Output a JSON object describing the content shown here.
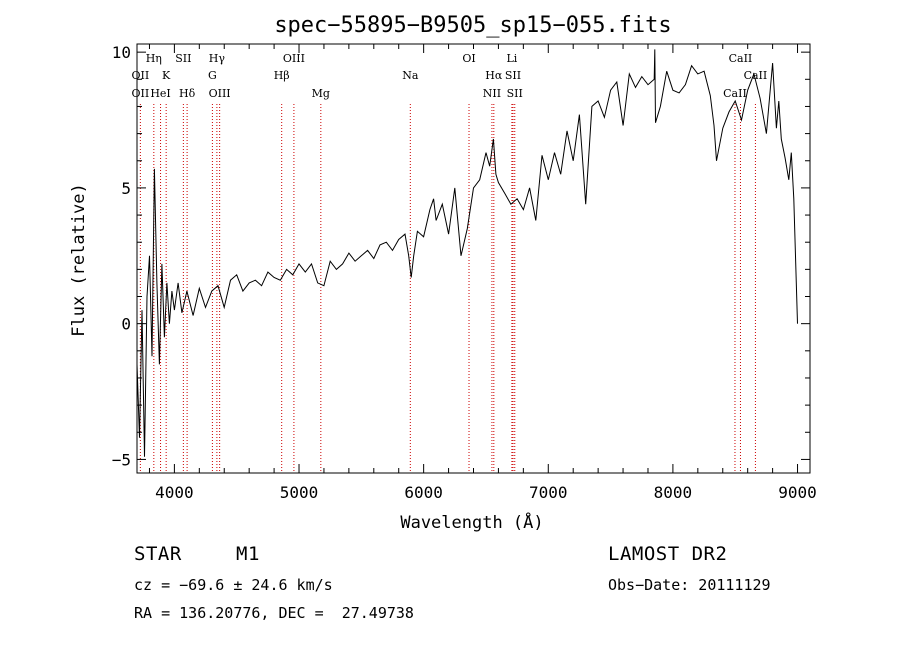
{
  "chart_data": {
    "type": "line",
    "title": "spec−55895−B9505_sp15−055.fits",
    "xlabel": "Wavelength (Å)",
    "ylabel": "Flux (relative)",
    "xlim": [
      3700,
      9100
    ],
    "ylim": [
      -5.5,
      10.3
    ],
    "x_ticks": [
      4000,
      5000,
      6000,
      7000,
      8000,
      9000
    ],
    "y_ticks": [
      -5,
      0,
      5,
      10
    ],
    "grid": false,
    "series": [
      {
        "x": [
          3700,
          3720,
          3740,
          3760,
          3780,
          3800,
          3820,
          3840,
          3860,
          3880,
          3900,
          3920,
          3940,
          3960,
          3980,
          4000,
          4030,
          4060,
          4100,
          4150,
          4200,
          4250,
          4300,
          4350,
          4400,
          4450,
          4500,
          4550,
          4600,
          4650,
          4700,
          4750,
          4800,
          4850,
          4900,
          4950,
          5000,
          5050,
          5100,
          5150,
          5200,
          5250,
          5300,
          5350,
          5400,
          5450,
          5500,
          5550,
          5600,
          5650,
          5700,
          5750,
          5800,
          5850,
          5880,
          5900,
          5920,
          5950,
          6000,
          6050,
          6080,
          6100,
          6150,
          6200,
          6250,
          6300,
          6350,
          6400,
          6450,
          6500,
          6530,
          6560,
          6580,
          6600,
          6650,
          6700,
          6750,
          6800,
          6850,
          6900,
          6950,
          7000,
          7050,
          7100,
          7150,
          7200,
          7250,
          7300,
          7350,
          7400,
          7450,
          7500,
          7550,
          7600,
          7650,
          7700,
          7750,
          7800,
          7850,
          7855,
          7860,
          7900,
          7950,
          8000,
          8050,
          8100,
          8150,
          8200,
          8250,
          8300,
          8330,
          8350,
          8400,
          8450,
          8500,
          8550,
          8600,
          8650,
          8700,
          8750,
          8800,
          8830,
          8850,
          8870,
          8900,
          8930,
          8950,
          8970,
          9000
        ],
        "y": [
          -1.5,
          -4.2,
          0.5,
          -4.9,
          1.0,
          2.5,
          -1.2,
          5.7,
          1.5,
          -1.5,
          2.2,
          -0.5,
          1.5,
          0.0,
          1.2,
          0.5,
          1.5,
          0.4,
          1.2,
          0.3,
          1.3,
          0.6,
          1.2,
          1.4,
          0.6,
          1.6,
          1.8,
          1.2,
          1.5,
          1.6,
          1.4,
          1.9,
          1.7,
          1.6,
          2.0,
          1.8,
          2.2,
          1.9,
          2.2,
          1.5,
          1.4,
          2.3,
          2.0,
          2.2,
          2.6,
          2.3,
          2.5,
          2.7,
          2.4,
          2.9,
          3.0,
          2.7,
          3.1,
          3.3,
          2.5,
          1.7,
          2.5,
          3.4,
          3.2,
          4.2,
          4.6,
          3.8,
          4.4,
          3.3,
          5.0,
          2.5,
          3.5,
          5.0,
          5.3,
          6.3,
          5.8,
          6.8,
          5.5,
          5.2,
          4.8,
          4.4,
          4.6,
          4.2,
          5.0,
          3.8,
          6.2,
          5.3,
          6.3,
          5.5,
          7.1,
          6.0,
          7.7,
          4.4,
          8.0,
          8.2,
          7.6,
          8.6,
          8.9,
          7.3,
          9.2,
          8.7,
          9.1,
          8.8,
          9.0,
          10.1,
          7.4,
          8.0,
          9.3,
          8.6,
          8.5,
          8.8,
          9.5,
          9.2,
          9.3,
          8.4,
          7.3,
          6.0,
          7.2,
          7.8,
          8.2,
          7.5,
          8.6,
          9.2,
          8.3,
          7.0,
          9.6,
          7.2,
          8.2,
          6.8,
          6.1,
          5.3,
          6.3,
          4.6,
          0.0
        ]
      }
    ],
    "lines": [
      {
        "label": "OII",
        "x": 3727,
        "row": 2,
        "color": "#000000"
      },
      {
        "label": "OII",
        "x": 3727,
        "row": 3,
        "color": "#000000"
      },
      {
        "label": "Hη",
        "x": 3835,
        "row": 1,
        "color": "#000000"
      },
      {
        "label": "K",
        "x": 3934,
        "row": 2,
        "color": "#000000"
      },
      {
        "label": "HeI",
        "x": 3889,
        "row": 3,
        "color": "#000000"
      },
      {
        "label": "SII",
        "x": 4072,
        "row": 1,
        "color": "#000000"
      },
      {
        "label": "Hδ",
        "x": 4102,
        "row": 3,
        "color": "#000000"
      },
      {
        "label": "Hγ",
        "x": 4341,
        "row": 1,
        "color": "#000000"
      },
      {
        "label": "G",
        "x": 4305,
        "row": 2,
        "color": "#000000"
      },
      {
        "label": "OIII",
        "x": 4363,
        "row": 3,
        "color": "#000000"
      },
      {
        "label": "OIII",
        "x": 4959,
        "row": 1,
        "color": "#000000"
      },
      {
        "label": "Hβ",
        "x": 4861,
        "row": 2,
        "color": "#000000"
      },
      {
        "label": "Mg",
        "x": 5175,
        "row": 3,
        "color": "#000000"
      },
      {
        "label": "Na",
        "x": 5893,
        "row": 2,
        "color": "#000000"
      },
      {
        "label": "OI",
        "x": 6364,
        "row": 1,
        "color": "#000000"
      },
      {
        "label": "Hα",
        "x": 6563,
        "row": 2,
        "color": "#000000"
      },
      {
        "label": "NII",
        "x": 6548,
        "row": 3,
        "color": "#000000"
      },
      {
        "label": "Li",
        "x": 6708,
        "row": 1,
        "color": "#000000"
      },
      {
        "label": "SII",
        "x": 6717,
        "row": 2,
        "color": "#000000"
      },
      {
        "label": "SII",
        "x": 6731,
        "row": 3,
        "color": "#000000"
      },
      {
        "label": "CaII",
        "x": 8542,
        "row": 1,
        "color": "#000000"
      },
      {
        "label": "CaII",
        "x": 8662,
        "row": 2,
        "color": "#000000"
      },
      {
        "label": "CaII",
        "x": 8498,
        "row": 3,
        "color": "#000000"
      }
    ],
    "marker_colors": {
      "vline": "#cc0000",
      "spectrum": "#000000"
    }
  },
  "footer": {
    "object_class": "STAR",
    "subclass": "M1",
    "survey": "LAMOST DR2",
    "velocity": "cz = −69.6 ± 24.6 km/s",
    "obs_date": "Obs−Date: 20111129",
    "coords": "RA = 136.20776, DEC =  27.49738"
  }
}
